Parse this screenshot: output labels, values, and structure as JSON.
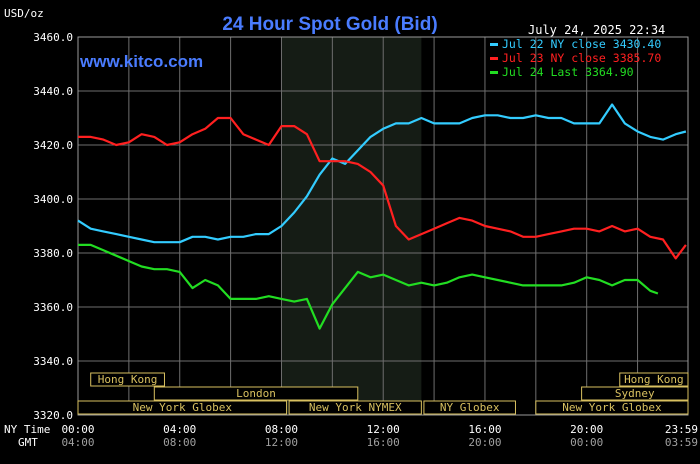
{
  "header": {
    "unit": "USD/oz",
    "title": "24 Hour Spot Gold (Bid)",
    "datetime": "July 24, 2025 22:34",
    "watermark": "www.kitco.com"
  },
  "legend": [
    {
      "text": "Jul 22 NY close 3430.40",
      "color": "#33ccff"
    },
    {
      "text": "Jul 23 NY close 3385.70",
      "color": "#ff2020"
    },
    {
      "text": "Jul 24 Last 3364.90",
      "color": "#22dd22"
    }
  ],
  "axis_labels": {
    "row1": "NY Time",
    "row2": "GMT"
  },
  "markets": [
    {
      "label": "Hong Kong",
      "row": 0,
      "start": 0.5,
      "end": 3.4
    },
    {
      "label": "Hong Kong",
      "row": 0,
      "start": 21.3,
      "end": 24.0
    },
    {
      "label": "London",
      "row": 1,
      "start": 3.0,
      "end": 11.0
    },
    {
      "label": "Sydney",
      "row": 1,
      "start": 19.8,
      "end": 24.0
    },
    {
      "label": "New York Globex",
      "row": 2,
      "start": 0.0,
      "end": 8.2
    },
    {
      "label": "New York NYMEX",
      "row": 2,
      "start": 8.3,
      "end": 13.5
    },
    {
      "label": "NY Globex",
      "row": 2,
      "start": 13.6,
      "end": 17.2
    },
    {
      "label": "New York Globex",
      "row": 2,
      "start": 18.0,
      "end": 24.0
    }
  ],
  "chart_data": {
    "type": "line",
    "title": "24 Hour Spot Gold (Bid)",
    "ylabel": "USD/oz",
    "xlabel": "NY Time",
    "ylim": [
      3320,
      3460
    ],
    "xlim": [
      0,
      23.983
    ],
    "yticks": [
      3320,
      3340,
      3360,
      3380,
      3400,
      3420,
      3440,
      3460
    ],
    "ytick_labels": [
      "3320.0",
      "3340.0",
      "3360.0",
      "3380.0",
      "3400.0",
      "3420.0",
      "3440.0",
      "3460.0"
    ],
    "xticks": [
      0,
      4,
      8,
      12,
      16,
      20,
      23.983
    ],
    "xtick_labels_ny": [
      "00:00",
      "04:00",
      "08:00",
      "12:00",
      "16:00",
      "20:00",
      "23:59"
    ],
    "xtick_labels_gmt": [
      "04:00",
      "08:00",
      "12:00",
      "16:00",
      "20:00",
      "00:00",
      "03:59"
    ],
    "grid": true,
    "legend_position": "top-right",
    "highlight_x_range": [
      8.0,
      13.5
    ],
    "series": [
      {
        "name": "Jul 22 NY close 3430.40",
        "color": "#33ccff",
        "x": [
          0,
          0.5,
          1,
          1.5,
          2,
          2.5,
          3,
          3.5,
          4,
          4.5,
          5,
          5.5,
          6,
          6.5,
          7,
          7.5,
          8,
          8.5,
          9,
          9.5,
          10,
          10.5,
          11,
          11.5,
          12,
          12.5,
          13,
          13.5,
          14,
          14.5,
          15,
          15.5,
          16,
          16.5,
          17,
          17.5,
          18,
          18.5,
          19,
          19.5,
          20,
          20.5,
          21,
          21.5,
          22,
          22.5,
          23,
          23.5,
          23.9
        ],
        "y": [
          3392,
          3389,
          3388,
          3387,
          3386,
          3385,
          3384,
          3384,
          3384,
          3386,
          3386,
          3385,
          3386,
          3386,
          3387,
          3387,
          3390,
          3395,
          3401,
          3409,
          3415,
          3413,
          3418,
          3423,
          3426,
          3428,
          3428,
          3430,
          3428,
          3428,
          3428,
          3430,
          3431,
          3431,
          3430,
          3430,
          3431,
          3430,
          3430,
          3428,
          3428,
          3428,
          3435,
          3428,
          3425,
          3423,
          3422,
          3424,
          3425
        ]
      },
      {
        "name": "Jul 23 NY close 3385.70",
        "color": "#ff2020",
        "x": [
          0,
          0.5,
          1,
          1.5,
          2,
          2.5,
          3,
          3.5,
          4,
          4.5,
          5,
          5.5,
          6,
          6.5,
          7,
          7.5,
          8,
          8.5,
          9,
          9.5,
          10,
          10.5,
          11,
          11.5,
          12,
          12.5,
          13,
          13.5,
          14,
          14.5,
          15,
          15.5,
          16,
          16.5,
          17,
          17.5,
          18,
          18.5,
          19,
          19.5,
          20,
          20.5,
          21,
          21.5,
          22,
          22.5,
          23,
          23.5,
          23.9
        ],
        "y": [
          3423,
          3423,
          3422,
          3420,
          3421,
          3424,
          3423,
          3420,
          3421,
          3424,
          3426,
          3430,
          3430,
          3424,
          3422,
          3420,
          3427,
          3427,
          3424,
          3414,
          3414,
          3414,
          3413,
          3410,
          3405,
          3390,
          3385,
          3387,
          3389,
          3391,
          3393,
          3392,
          3390,
          3389,
          3388,
          3386,
          3386,
          3387,
          3388,
          3389,
          3389,
          3388,
          3390,
          3388,
          3389,
          3386,
          3385,
          3378,
          3383
        ]
      },
      {
        "name": "Jul 24 Last 3364.90",
        "color": "#22dd22",
        "x": [
          0,
          0.5,
          1,
          1.5,
          2,
          2.5,
          3,
          3.5,
          4,
          4.5,
          5,
          5.5,
          6,
          6.5,
          7,
          7.5,
          8,
          8.5,
          9,
          9.5,
          10,
          10.5,
          11,
          11.5,
          12,
          12.5,
          13,
          13.5,
          14,
          14.5,
          15,
          15.5,
          16,
          16.5,
          17,
          17.5,
          18,
          18.5,
          19,
          19.5,
          20,
          20.5,
          21,
          21.5,
          22,
          22.5,
          22.8
        ],
        "y": [
          3383,
          3383,
          3381,
          3379,
          3377,
          3375,
          3374,
          3374,
          3373,
          3367,
          3370,
          3368,
          3363,
          3363,
          3363,
          3364,
          3363,
          3362,
          3363,
          3352,
          3361,
          3367,
          3373,
          3371,
          3372,
          3370,
          3368,
          3369,
          3368,
          3369,
          3371,
          3372,
          3371,
          3370,
          3369,
          3368,
          3368,
          3368,
          3368,
          3369,
          3371,
          3370,
          3368,
          3370,
          3370,
          3366,
          3365
        ]
      }
    ]
  }
}
